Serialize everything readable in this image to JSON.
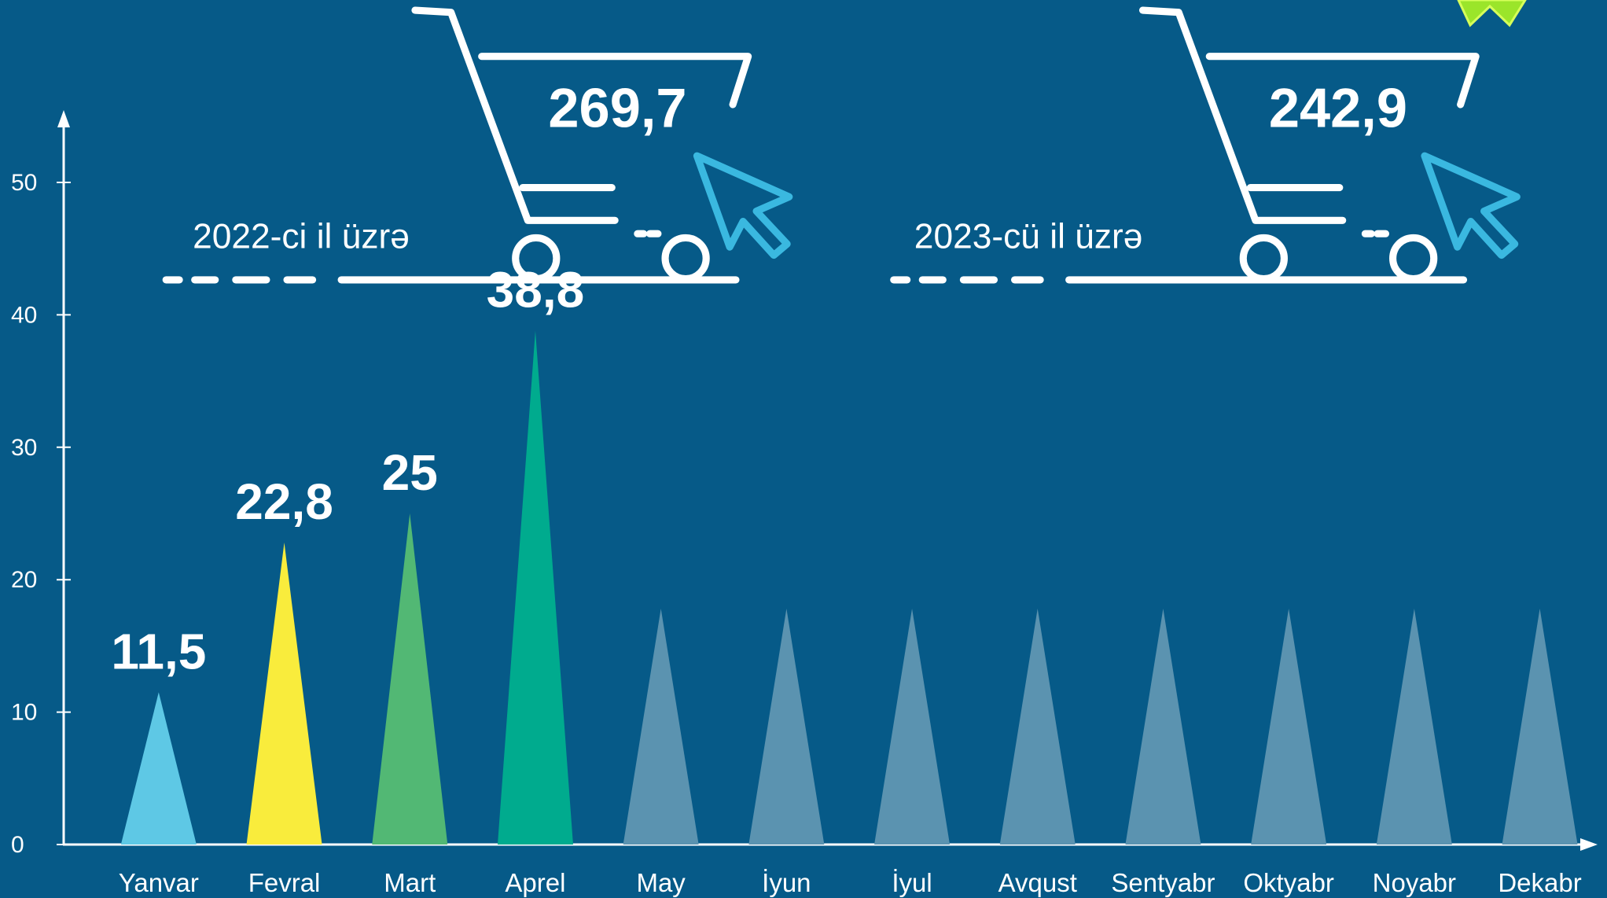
{
  "chart_data": {
    "type": "bar",
    "categories": [
      "Yanvar",
      "Fevral",
      "Mart",
      "Aprel",
      "May",
      "İyun",
      "İyul",
      "Avqust",
      "Sentyabr",
      "Oktyabr",
      "Noyabr",
      "Dekabr"
    ],
    "values": [
      11.5,
      22.8,
      25,
      38.8,
      null,
      null,
      null,
      null,
      null,
      null,
      null,
      null
    ],
    "value_labels": [
      "11,5",
      "22,8",
      "25",
      "38,8",
      null,
      null,
      null,
      null,
      null,
      null,
      null,
      null
    ],
    "colors": [
      "#5ec8e5",
      "#f9ec3c",
      "#52b874",
      "#00ab8e"
    ],
    "ylim": [
      0,
      55
    ],
    "yticks": [
      0,
      10,
      20,
      30,
      40,
      50
    ],
    "annotations": [
      {
        "text": "2022-ci il üzrə",
        "total": "269,7"
      },
      {
        "text": "2023-cü il üzrə",
        "total": "242,9"
      }
    ]
  }
}
